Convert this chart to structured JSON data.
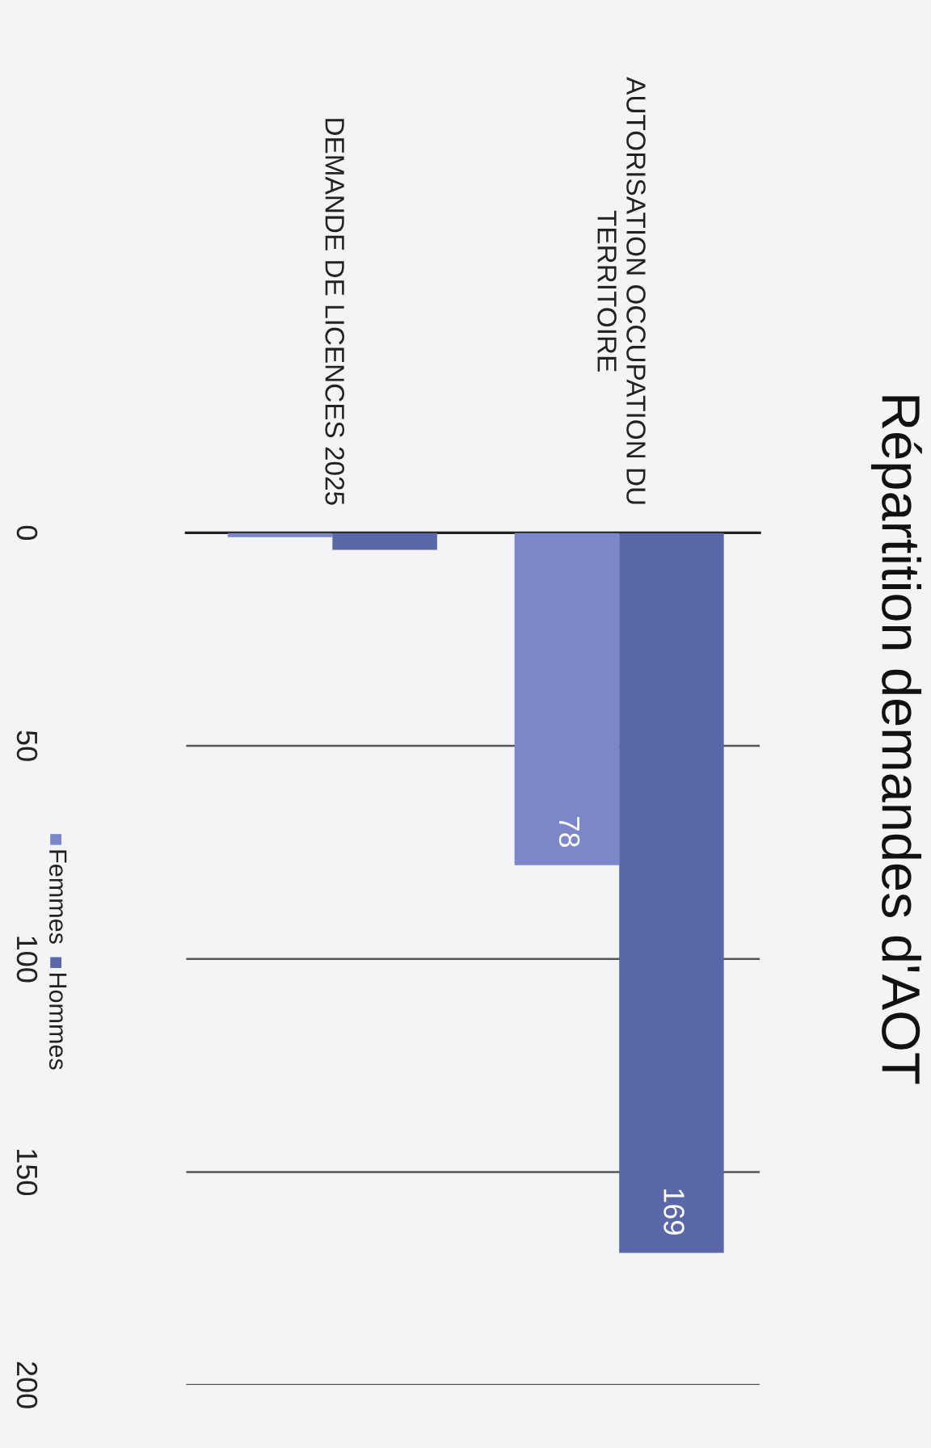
{
  "chart_data": {
    "type": "bar",
    "title": "Répartition demandes d'AOT",
    "categories": [
      "DEMANDE DE LICENCES 2025",
      "AUTORISATION OCCUPATION DU\nTERRITOIRE"
    ],
    "series": [
      {
        "name": "Femmes",
        "color": "#7b87c9",
        "values": [
          1,
          78
        ],
        "value_labels": [
          null,
          "78"
        ]
      },
      {
        "name": "Hommes",
        "color": "#5a67a9",
        "values": [
          4,
          169
        ],
        "value_labels": [
          null,
          "169"
        ]
      }
    ],
    "ylim": [
      200,
      0
    ],
    "yticks": [
      0,
      50,
      100,
      150,
      200
    ],
    "grid": "y",
    "legend": "left"
  }
}
